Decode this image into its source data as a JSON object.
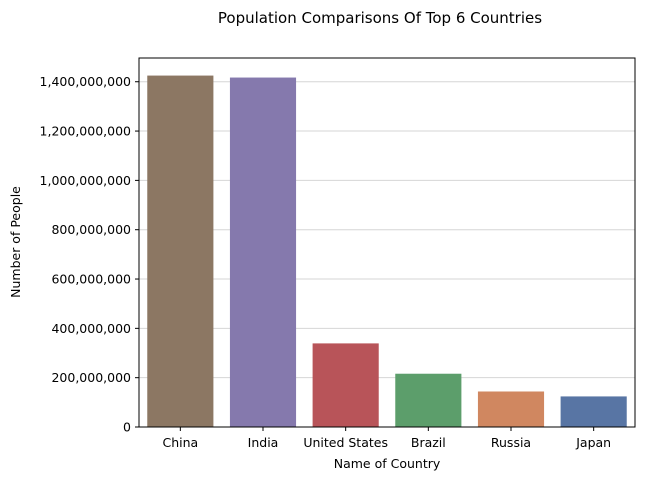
{
  "chart_data": {
    "type": "bar",
    "title": "Population Comparisons Of Top 6 Countries",
    "xlabel": "Name of Country",
    "ylabel": "Number of People",
    "categories": [
      "China",
      "India",
      "United States",
      "Brazil",
      "Russia",
      "Japan"
    ],
    "values": [
      1425000000,
      1417000000,
      339000000,
      216000000,
      144000000,
      124000000
    ],
    "colors": [
      "#8c7763",
      "#8579ad",
      "#b85459",
      "#5c9e6b",
      "#d08760",
      "#5875a4"
    ],
    "ylim": [
      0,
      1496250000
    ],
    "yticks": [
      0,
      200000000,
      400000000,
      600000000,
      800000000,
      1000000000,
      1200000000,
      1400000000
    ],
    "ytick_labels": [
      "0",
      "200,000,000",
      "400,000,000",
      "600,000,000",
      "800,000,000",
      "1,000,000,000",
      "1,200,000,000",
      "1,400,000,000"
    ],
    "grid": "horizontal",
    "legend": "none"
  }
}
